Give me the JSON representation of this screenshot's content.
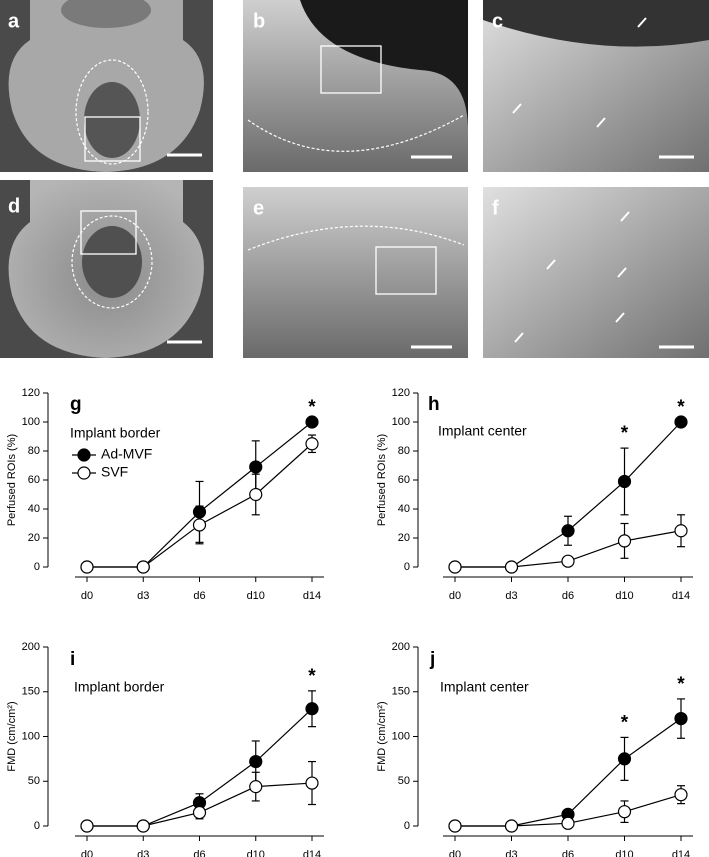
{
  "image_panels": [
    {
      "label": "a"
    },
    {
      "label": "b"
    },
    {
      "label": "c"
    },
    {
      "label": "d"
    },
    {
      "label": "e"
    },
    {
      "label": "f"
    }
  ],
  "chart_data": [
    {
      "type": "line",
      "panel": "g",
      "annotation": "Implant border",
      "y_label": "Perfused ROIs (%)",
      "categories": [
        "d0",
        "d3",
        "d6",
        "d10",
        "d14"
      ],
      "ylim": [
        0,
        120
      ],
      "yticks": [
        0,
        20,
        40,
        60,
        80,
        100,
        120
      ],
      "legend": true,
      "series": [
        {
          "name": "Ad-MVF",
          "color": "#000000",
          "values": [
            0,
            0,
            38,
            69,
            100
          ],
          "errors": [
            0,
            0,
            21,
            18,
            0
          ]
        },
        {
          "name": "SVF",
          "color": "#ffffff",
          "values": [
            0,
            0,
            29,
            50,
            85
          ],
          "errors": [
            0,
            0,
            13,
            14,
            6
          ]
        }
      ],
      "significance": [
        null,
        null,
        null,
        null,
        "*"
      ]
    },
    {
      "type": "line",
      "panel": "h",
      "annotation": "Implant center",
      "y_label": "Perfused ROIs (%)",
      "categories": [
        "d0",
        "d3",
        "d6",
        "d10",
        "d14"
      ],
      "ylim": [
        0,
        120
      ],
      "yticks": [
        0,
        20,
        40,
        60,
        80,
        100,
        120
      ],
      "legend": false,
      "series": [
        {
          "color": "#000000",
          "values": [
            0,
            0,
            25,
            59,
            100
          ],
          "errors": [
            0,
            0,
            10,
            23,
            0
          ]
        },
        {
          "color": "#ffffff",
          "values": [
            0,
            0,
            4,
            18,
            25
          ],
          "errors": [
            0,
            0,
            3,
            12,
            11
          ]
        }
      ],
      "significance": [
        null,
        null,
        null,
        "*",
        "*"
      ]
    },
    {
      "type": "line",
      "panel": "i",
      "annotation": "Implant border",
      "y_label": "FMD (cm/cm²)",
      "categories": [
        "d0",
        "d3",
        "d6",
        "d10",
        "d14"
      ],
      "ylim": [
        0,
        200
      ],
      "yticks": [
        0,
        50,
        100,
        150,
        200
      ],
      "legend": false,
      "series": [
        {
          "color": "#000000",
          "values": [
            0,
            0,
            26,
            72,
            131
          ],
          "errors": [
            0,
            0,
            10,
            23,
            20
          ]
        },
        {
          "color": "#ffffff",
          "values": [
            0,
            0,
            15,
            44,
            48
          ],
          "errors": [
            0,
            0,
            7,
            16,
            24
          ]
        }
      ],
      "significance": [
        null,
        null,
        null,
        null,
        "*"
      ]
    },
    {
      "type": "line",
      "panel": "j",
      "annotation": "Implant center",
      "y_label": "FMD (cm/cm²)",
      "categories": [
        "d0",
        "d3",
        "d6",
        "d10",
        "d14"
      ],
      "ylim": [
        0,
        200
      ],
      "yticks": [
        0,
        50,
        100,
        150,
        200
      ],
      "legend": false,
      "series": [
        {
          "color": "#000000",
          "values": [
            0,
            0,
            13,
            75,
            120
          ],
          "errors": [
            0,
            0,
            5,
            24,
            22
          ]
        },
        {
          "color": "#ffffff",
          "values": [
            0,
            0,
            3,
            16,
            35
          ],
          "errors": [
            0,
            0,
            2,
            12,
            10
          ]
        }
      ],
      "significance": [
        null,
        null,
        null,
        "*",
        "*"
      ]
    }
  ]
}
